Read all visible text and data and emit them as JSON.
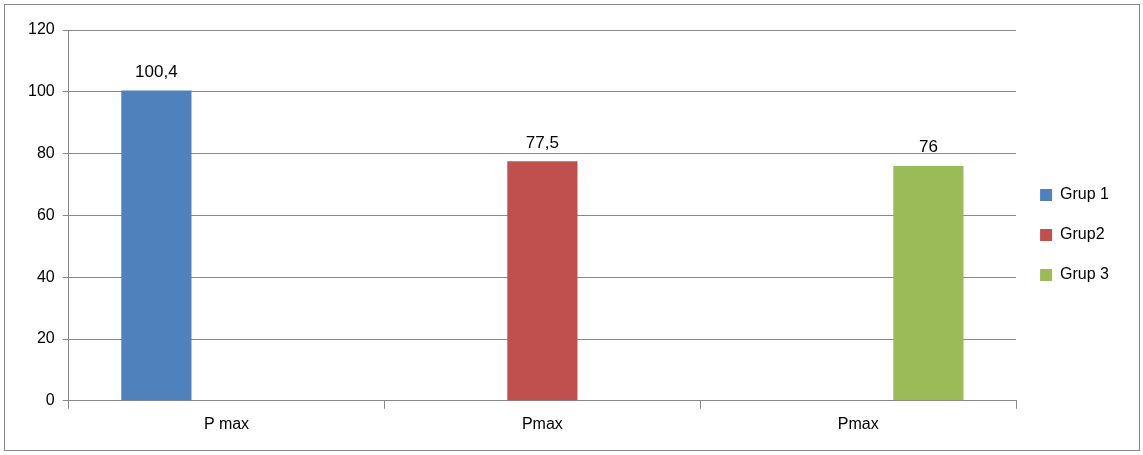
{
  "chart_data": {
    "type": "bar",
    "categories": [
      "P max",
      "Pmax",
      "Pmax"
    ],
    "series": [
      {
        "name": "Grup 1",
        "color": "#4f81bd",
        "values": [
          100.4,
          null,
          null
        ],
        "value_labels": [
          "100,4",
          null,
          null
        ]
      },
      {
        "name": "Grup2",
        "color": "#c0504d",
        "values": [
          null,
          77.5,
          null
        ],
        "value_labels": [
          null,
          "77,5",
          null
        ]
      },
      {
        "name": "Grup 3",
        "color": "#9bbb59",
        "values": [
          null,
          null,
          76
        ],
        "value_labels": [
          null,
          null,
          "76"
        ]
      }
    ],
    "ylim": [
      0,
      120
    ],
    "yticks": [
      0,
      20,
      40,
      60,
      80,
      100,
      120
    ],
    "grid": "y",
    "legend": "right"
  }
}
